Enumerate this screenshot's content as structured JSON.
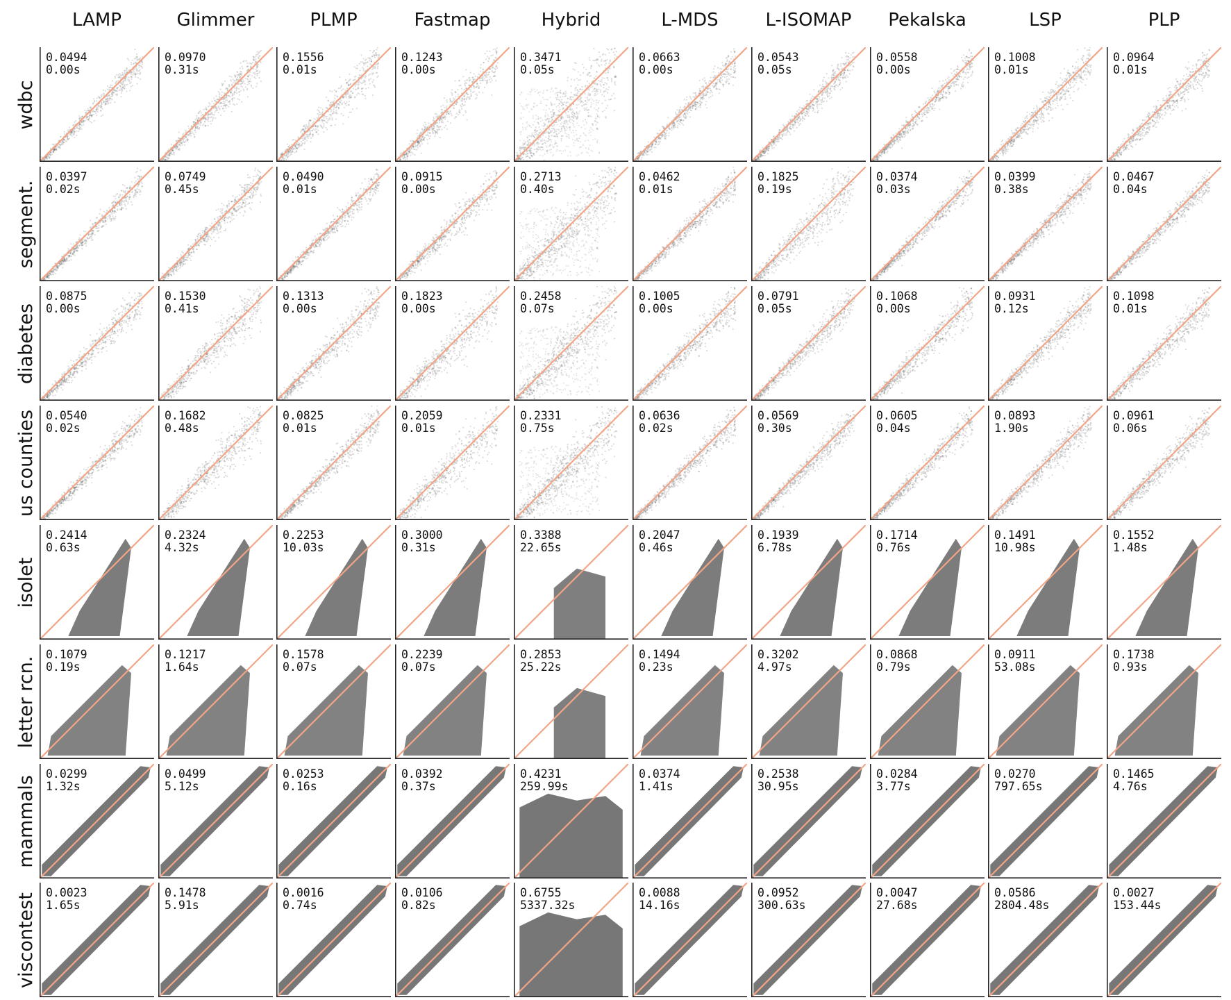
{
  "chart_data": {
    "type": "scatter",
    "title": "",
    "xlabel": "",
    "ylabel": "",
    "columns": [
      "LAMP",
      "Glimmer",
      "PLMP",
      "Fastmap",
      "Hybrid",
      "L-MDS",
      "L-ISOMAP",
      "Pekalska",
      "LSP",
      "PLP"
    ],
    "rows": [
      {
        "name": "wdbc",
        "stress": [
          "0.0494",
          "0.0970",
          "0.1556",
          "0.1243",
          "0.3471",
          "0.0663",
          "0.0543",
          "0.0558",
          "0.1008",
          "0.0964"
        ],
        "time": [
          "0.00s",
          "0.31s",
          "0.01s",
          "0.00s",
          "0.05s",
          "0.00s",
          "0.05s",
          "0.00s",
          "0.01s",
          "0.01s"
        ]
      },
      {
        "name": "segment.",
        "stress": [
          "0.0397",
          "0.0749",
          "0.0490",
          "0.0915",
          "0.2713",
          "0.0462",
          "0.1825",
          "0.0374",
          "0.0399",
          "0.0467"
        ],
        "time": [
          "0.02s",
          "0.45s",
          "0.01s",
          "0.00s",
          "0.40s",
          "0.01s",
          "0.19s",
          "0.03s",
          "0.38s",
          "0.04s"
        ]
      },
      {
        "name": "diabetes",
        "stress": [
          "0.0875",
          "0.1530",
          "0.1313",
          "0.1823",
          "0.2458",
          "0.1005",
          "0.0791",
          "0.1068",
          "0.0931",
          "0.1098"
        ],
        "time": [
          "0.00s",
          "0.41s",
          "0.00s",
          "0.00s",
          "0.07s",
          "0.00s",
          "0.05s",
          "0.00s",
          "0.12s",
          "0.01s"
        ]
      },
      {
        "name": "us counties",
        "stress": [
          "0.0540",
          "0.1682",
          "0.0825",
          "0.2059",
          "0.2331",
          "0.0636",
          "0.0569",
          "0.0605",
          "0.0893",
          "0.0961"
        ],
        "time": [
          "0.02s",
          "0.48s",
          "0.01s",
          "0.01s",
          "0.75s",
          "0.02s",
          "0.30s",
          "0.04s",
          "1.90s",
          "0.06s"
        ]
      },
      {
        "name": "isolet",
        "stress": [
          "0.2414",
          "0.2324",
          "0.2253",
          "0.3000",
          "0.3388",
          "0.2047",
          "0.1939",
          "0.1714",
          "0.1491",
          "0.1552"
        ],
        "time": [
          "0.63s",
          "4.32s",
          "10.03s",
          "0.31s",
          "22.65s",
          "0.46s",
          "6.78s",
          "0.76s",
          "10.98s",
          "1.48s"
        ]
      },
      {
        "name": "letter rcn.",
        "stress": [
          "0.1079",
          "0.1217",
          "0.1578",
          "0.2239",
          "0.2853",
          "0.1494",
          "0.3202",
          "0.0868",
          "0.0911",
          "0.1738"
        ],
        "time": [
          "0.19s",
          "1.64s",
          "0.07s",
          "0.07s",
          "25.22s",
          "0.23s",
          "4.97s",
          "0.79s",
          "53.08s",
          "0.93s"
        ]
      },
      {
        "name": "mammals",
        "stress": [
          "0.0299",
          "0.0499",
          "0.0253",
          "0.0392",
          "0.4231",
          "0.0374",
          "0.2538",
          "0.0284",
          "0.0270",
          "0.1465"
        ],
        "time": [
          "1.32s",
          "5.12s",
          "0.16s",
          "0.37s",
          "259.99s",
          "1.41s",
          "30.95s",
          "3.77s",
          "797.65s",
          "4.76s"
        ]
      },
      {
        "name": "viscontest",
        "stress": [
          "0.0023",
          "0.1478",
          "0.0016",
          "0.0106",
          "0.6755",
          "0.0088",
          "0.0952",
          "0.0047",
          "0.0586",
          "0.0027"
        ],
        "time": [
          "1.65s",
          "5.91s",
          "0.74s",
          "0.82s",
          "5337.32s",
          "14.16s",
          "300.63s",
          "27.68s",
          "2804.48s",
          "153.44s"
        ]
      }
    ],
    "xlim": [
      0,
      1
    ],
    "ylim": [
      0,
      1
    ],
    "grid": false,
    "legend": "none",
    "colors": {
      "diagonal": "#f4a486",
      "points": "#5f5f5f",
      "axis": "#222222"
    }
  }
}
